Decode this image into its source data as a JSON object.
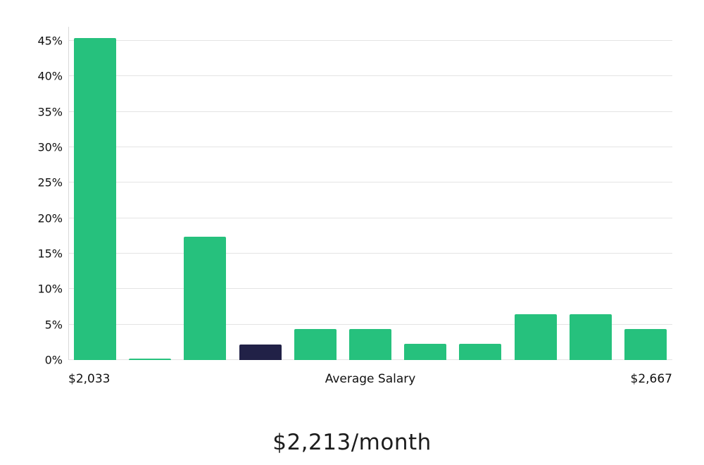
{
  "chart_data": {
    "type": "bar",
    "title": "$2,213/month",
    "xlabel": "",
    "ylabel": "",
    "x_axis": {
      "left_label": "$2,033",
      "center_label": "Average Salary",
      "right_label": "$2,667"
    },
    "ylim": [
      0,
      47
    ],
    "yticks": [
      0,
      5,
      10,
      15,
      20,
      25,
      30,
      35,
      40,
      45
    ],
    "ytick_suffix": "%",
    "grid": "horizontal",
    "legend": "none",
    "values": [
      45.4,
      0.2,
      17.4,
      2.2,
      4.4,
      4.4,
      2.3,
      2.3,
      6.5,
      6.5,
      4.4
    ],
    "highlight_index": 3,
    "highlight_meaning": "average salary bin",
    "colors": {
      "bar": "#26c17d",
      "highlight": "#212147",
      "gridline": "#e4e4e4",
      "axis": "#d9d9d9",
      "text": "#111111"
    }
  }
}
